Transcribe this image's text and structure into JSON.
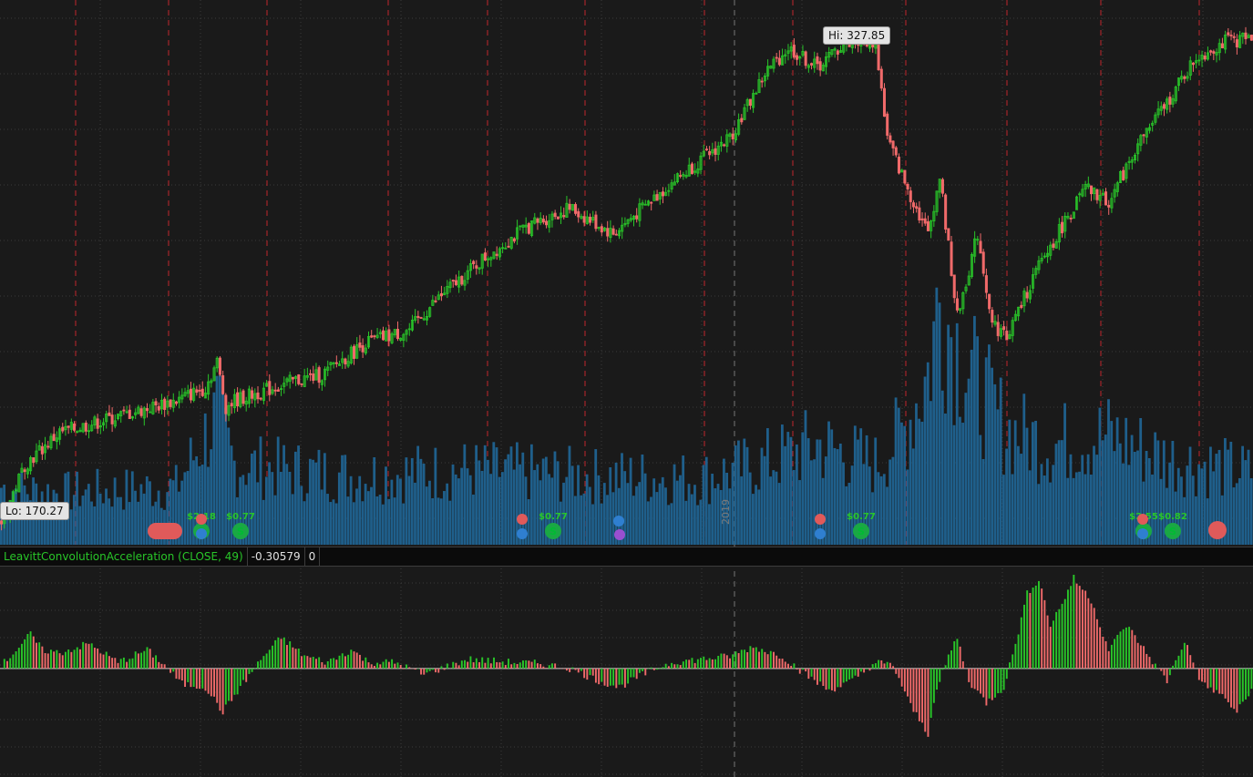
{
  "colors": {
    "background": "#1a1a1a",
    "up": "#29c629",
    "down": "#f06a6a",
    "volume": "#1f5f8b",
    "grid": "#3a3a3a",
    "earnings_line": "#c0262c",
    "study_label": "#29c629"
  },
  "price_panel": {
    "lo_label": "Lo: 170.27",
    "hi_label": "Hi: 327.85",
    "year_marker": "2019"
  },
  "study": {
    "name": "LeavittConvolutionAcceleration (CLOSE, 49)",
    "value": "-0.30579",
    "extra": "0"
  },
  "events": [
    {
      "type": "dividend",
      "label": "$2.18"
    },
    {
      "type": "dividend",
      "label": "$0.77"
    },
    {
      "type": "dividend",
      "label": "$0.77"
    },
    {
      "type": "dividend",
      "label": "$0.77"
    },
    {
      "type": "dividend",
      "label": "$2.55"
    },
    {
      "type": "dividend",
      "label": "$0.82"
    }
  ],
  "chart_data": {
    "type": "candlestick",
    "price_range": [
      165,
      335
    ],
    "anchors": [
      [
        0,
        172
      ],
      [
        8,
        190
      ],
      [
        20,
        200
      ],
      [
        40,
        205
      ],
      [
        60,
        210
      ],
      [
        70,
        214
      ],
      [
        74,
        222
      ],
      [
        77,
        208
      ],
      [
        80,
        210
      ],
      [
        90,
        213
      ],
      [
        100,
        216
      ],
      [
        110,
        218
      ],
      [
        125,
        228
      ],
      [
        140,
        232
      ],
      [
        150,
        242
      ],
      [
        165,
        254
      ],
      [
        180,
        264
      ],
      [
        195,
        270
      ],
      [
        210,
        262
      ],
      [
        230,
        278
      ],
      [
        250,
        292
      ],
      [
        262,
        312
      ],
      [
        270,
        320
      ],
      [
        280,
        314
      ],
      [
        290,
        322
      ],
      [
        300,
        322
      ],
      [
        304,
        292
      ],
      [
        310,
        278
      ],
      [
        318,
        262
      ],
      [
        322,
        280
      ],
      [
        328,
        236
      ],
      [
        335,
        262
      ],
      [
        340,
        234
      ],
      [
        345,
        230
      ],
      [
        355,
        250
      ],
      [
        365,
        266
      ],
      [
        372,
        276
      ],
      [
        380,
        272
      ],
      [
        390,
        290
      ],
      [
        400,
        303
      ],
      [
        410,
        317
      ],
      [
        420,
        322
      ],
      [
        429,
        323
      ]
    ],
    "volume_anchors": [
      [
        0,
        0.2
      ],
      [
        20,
        0.18
      ],
      [
        60,
        0.2
      ],
      [
        74,
        0.45
      ],
      [
        80,
        0.28
      ],
      [
        120,
        0.24
      ],
      [
        160,
        0.26
      ],
      [
        200,
        0.24
      ],
      [
        240,
        0.23
      ],
      [
        260,
        0.28
      ],
      [
        280,
        0.35
      ],
      [
        300,
        0.28
      ],
      [
        310,
        0.4
      ],
      [
        318,
        0.6
      ],
      [
        322,
        0.85
      ],
      [
        328,
        0.7
      ],
      [
        335,
        0.55
      ],
      [
        345,
        0.4
      ],
      [
        360,
        0.35
      ],
      [
        380,
        0.38
      ],
      [
        400,
        0.3
      ],
      [
        429,
        0.25
      ]
    ],
    "study_range": [
      -1.7,
      1.55
    ],
    "study_anchors": [
      [
        0,
        0.05
      ],
      [
        10,
        0.55
      ],
      [
        14,
        0.3
      ],
      [
        20,
        0.25
      ],
      [
        30,
        0.4
      ],
      [
        40,
        0.1
      ],
      [
        50,
        0.3
      ],
      [
        55,
        0.1
      ],
      [
        62,
        -0.25
      ],
      [
        70,
        -0.3
      ],
      [
        76,
        -0.7
      ],
      [
        82,
        -0.3
      ],
      [
        90,
        0.2
      ],
      [
        96,
        0.5
      ],
      [
        104,
        0.2
      ],
      [
        112,
        0.1
      ],
      [
        120,
        0.3
      ],
      [
        126,
        0.1
      ],
      [
        135,
        0.1
      ],
      [
        145,
        -0.1
      ],
      [
        160,
        0.15
      ],
      [
        175,
        0.1
      ],
      [
        185,
        0.08
      ],
      [
        195,
        0.0
      ],
      [
        205,
        -0.2
      ],
      [
        212,
        -0.3
      ],
      [
        220,
        -0.1
      ],
      [
        230,
        0.1
      ],
      [
        240,
        0.15
      ],
      [
        250,
        0.2
      ],
      [
        258,
        0.35
      ],
      [
        268,
        0.2
      ],
      [
        276,
        -0.1
      ],
      [
        284,
        -0.35
      ],
      [
        292,
        -0.2
      ],
      [
        300,
        0.1
      ],
      [
        306,
        0.05
      ],
      [
        312,
        -0.6
      ],
      [
        318,
        -1.05
      ],
      [
        320,
        -0.5
      ],
      [
        325,
        0.2
      ],
      [
        328,
        0.5
      ],
      [
        332,
        -0.2
      ],
      [
        338,
        -0.55
      ],
      [
        344,
        -0.3
      ],
      [
        348,
        0.4
      ],
      [
        352,
        1.2
      ],
      [
        356,
        1.45
      ],
      [
        360,
        0.7
      ],
      [
        364,
        1.05
      ],
      [
        368,
        1.45
      ],
      [
        374,
        1.1
      ],
      [
        380,
        0.3
      ],
      [
        386,
        0.7
      ],
      [
        390,
        0.45
      ],
      [
        396,
        0.05
      ],
      [
        400,
        -0.2
      ],
      [
        406,
        0.45
      ],
      [
        412,
        -0.25
      ],
      [
        418,
        -0.4
      ],
      [
        424,
        -0.7
      ],
      [
        429,
        -0.35
      ]
    ],
    "bars": 430
  }
}
